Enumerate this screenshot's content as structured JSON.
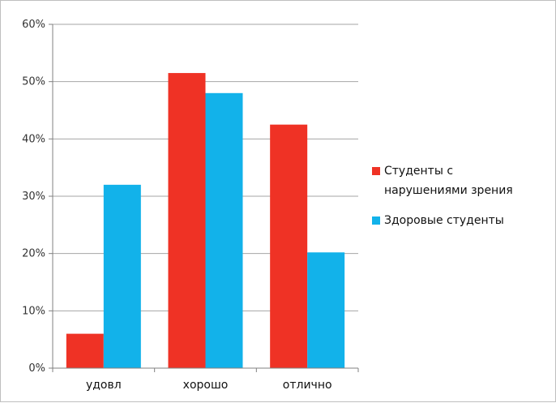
{
  "chart_data": {
    "type": "bar",
    "categories": [
      "удовл",
      "хорошо",
      "отлично"
    ],
    "series": [
      {
        "name": "Студенты с нарушениями зрения",
        "name_lines": [
          "Студенты с",
          "нарушениями зрения"
        ],
        "color": "#ef3225",
        "values": [
          6,
          51.5,
          42.5
        ]
      },
      {
        "name": "Здоровые студенты",
        "name_lines": [
          "Здоровые студенты"
        ],
        "color": "#12b2ea",
        "values": [
          32,
          48,
          20.2
        ]
      }
    ],
    "ylim": [
      0,
      60
    ],
    "yticks": [
      0,
      10,
      20,
      30,
      40,
      50,
      60
    ],
    "ytick_labels": [
      "0%",
      "10%",
      "20%",
      "30%",
      "40%",
      "50%",
      "60%"
    ],
    "grid": true,
    "legend_position": "right",
    "title": "",
    "xlabel": "",
    "ylabel": ""
  }
}
